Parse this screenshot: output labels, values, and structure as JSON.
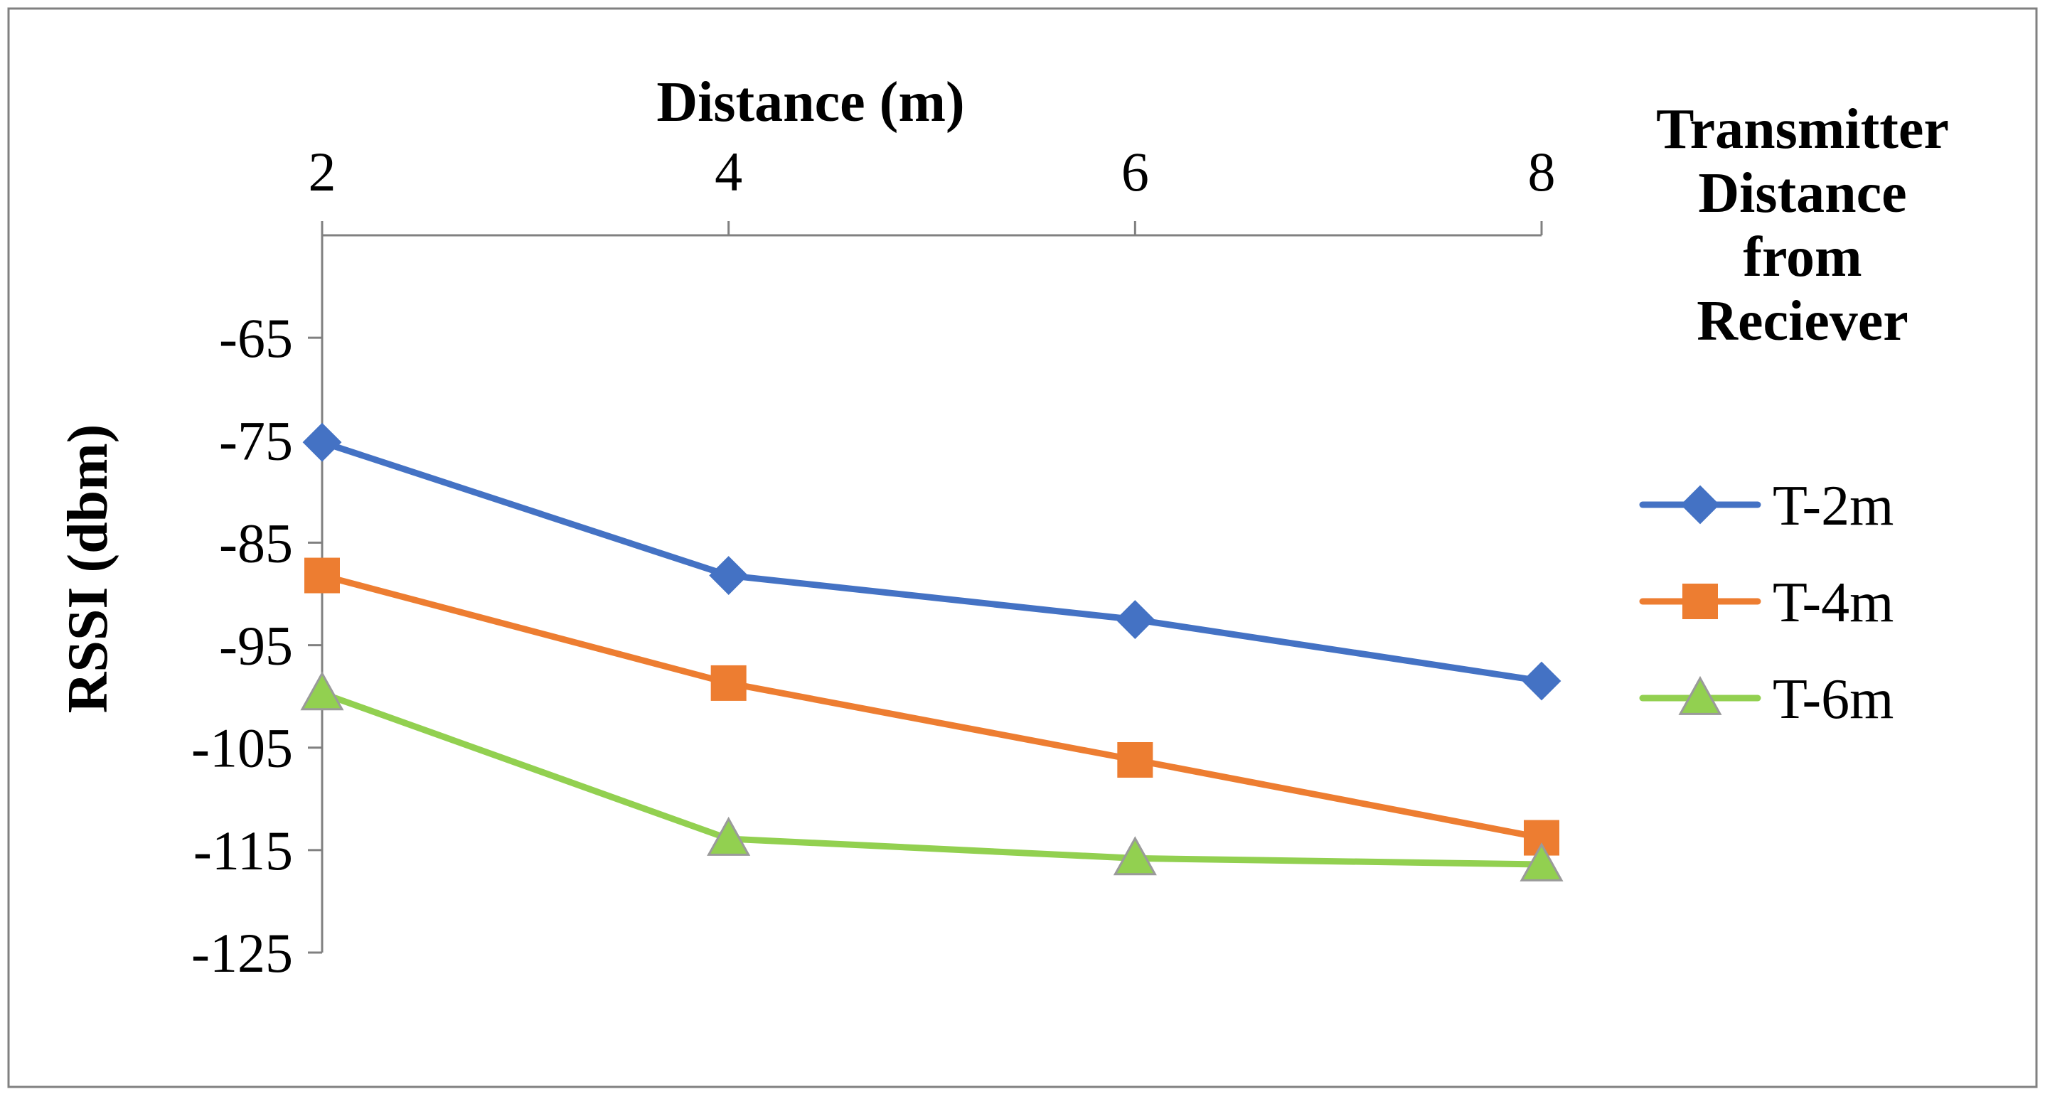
{
  "chart_data": {
    "type": "line",
    "xlabel": "Distance (m)",
    "ylabel": "RSSI (dbm)",
    "x": [
      2,
      4,
      6,
      8
    ],
    "x_tick_labels": [
      "2",
      "4",
      "6",
      "8"
    ],
    "xlim": [
      2,
      8
    ],
    "x_axis_position": "top",
    "y_tick_values": [
      -65,
      -75,
      -85,
      -95,
      -105,
      -115,
      -125
    ],
    "y_tick_labels": [
      "-65",
      "-75",
      "-85",
      "-95",
      "-105",
      "-115",
      "-125"
    ],
    "ylim": [
      -125,
      -55
    ],
    "grid": false,
    "legend_title_lines": [
      "Transmitter",
      "Distance",
      "from",
      "Reciever"
    ],
    "legend_position": "right",
    "series": [
      {
        "name": "T-2m",
        "marker": "diamond",
        "color": "#4472C4",
        "values": [
          -75.2,
          -88.2,
          -92.5,
          -98.5
        ]
      },
      {
        "name": "T-4m",
        "marker": "square",
        "color": "#ED7D31",
        "values": [
          -88.2,
          -98.7,
          -106.2,
          -113.8
        ]
      },
      {
        "name": "T-6m",
        "marker": "triangle",
        "color": "#92D050",
        "values": [
          -99.7,
          -113.9,
          -115.8,
          -116.4
        ]
      }
    ]
  }
}
